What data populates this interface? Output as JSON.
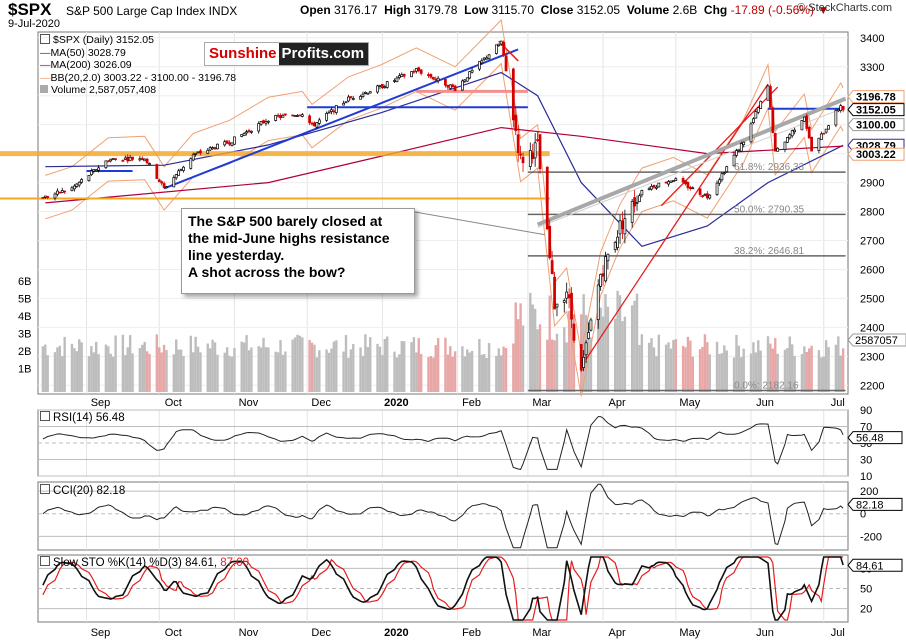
{
  "header": {
    "symbol": "$SPX",
    "name": "S&P 500 Large Cap Index",
    "exchange": "INDX",
    "date": "9-Jul-2020",
    "open_label": "Open",
    "open": "3176.17",
    "high_label": "High",
    "high": "3179.78",
    "low_label": "Low",
    "low": "3115.70",
    "close_label": "Close",
    "close": "3152.05",
    "volume_label": "Volume",
    "volume": "2.6B",
    "chg_label": "Chg",
    "chg": "-17.89 (-0.56%)",
    "chg_arrow": "▼",
    "brand": "© StockCharts.com"
  },
  "legend": {
    "price": "$SPX (Daily) 3152.05",
    "ma50": "MA(50) 3028.79",
    "ma200": "MA(200) 3026.09",
    "bb": "BB(20,2.0) 3003.22 - 3100.00 - 3196.78",
    "volume": "Volume 2,587,057,408"
  },
  "logo": {
    "part1": "Sunshine",
    "part2": "Profits.com"
  },
  "annotation": {
    "lines": [
      "The S&P 500 barely closed at",
      "the mid-June highs resistance",
      "line yesterday.",
      "A shot across the bow?"
    ]
  },
  "price_badges": {
    "bb_upper": "3196.78",
    "close": "3152.05",
    "bb_mid": "3100.00",
    "ma50": "3028.79",
    "bb_lower": "3003.22",
    "volume": "2587057"
  },
  "fib_labels": [
    "61.8%: 2936.33",
    "50.0%: 2790.35",
    "38.2%: 2646.81",
    "0.0%: 2182.16"
  ],
  "indicators": {
    "rsi": {
      "title": "RSI(14) 56.48",
      "value": "56.48",
      "ticks": [
        "90",
        "70",
        "50",
        "30",
        "10"
      ]
    },
    "cci": {
      "title": "CCI(20) 82.18",
      "value": "82.18",
      "ticks": [
        "200",
        "0",
        "-200"
      ]
    },
    "sto": {
      "title_main": "Slow STO %K(14) %D(3) 84.61, ",
      "title_red": "87.00",
      "value": "84.61",
      "ticks": [
        "80",
        "50",
        "20"
      ]
    }
  },
  "colors": {
    "price_up": "#000000",
    "price_down": "#d40000",
    "ma50": "#2b2b9a",
    "ma200": "#b0003a",
    "bb": "#f0a070",
    "volume_up": "#bdbdbd",
    "volume_down": "#e8a7a7",
    "support_orange": "#f5a623",
    "resistance_blue": "#1f3bd6",
    "trend_red": "#e81c1c",
    "trend_gray": "#a8a8a8",
    "osc_green": "#4f8a4f",
    "osc_red": "#8a4a4a",
    "sto_d": "#e81c1c"
  },
  "chart_data": [
    {
      "type": "candlestick",
      "title": "$SPX S&P 500 Large Cap Index",
      "x_ticks": [
        "Sep",
        "Oct",
        "Nov",
        "Dec",
        "2020",
        "Feb",
        "Mar",
        "Apr",
        "May",
        "Jun",
        "Jul"
      ],
      "y_ticks": [
        3400,
        3300,
        3200,
        3100,
        3000,
        2900,
        2800,
        2700,
        2600,
        2500,
        2400,
        2300,
        2200
      ],
      "volume_ticks": [
        "6B",
        "5B",
        "4B",
        "3B",
        "2B",
        "1B"
      ],
      "ylim": [
        2170,
        3420
      ],
      "close_points": [
        [
          "2019-08-15",
          2850
        ],
        [
          "2019-08-26",
          2880
        ],
        [
          "2019-09-10",
          2980
        ],
        [
          "2019-09-25",
          2985
        ],
        [
          "2019-10-03",
          2880
        ],
        [
          "2019-10-15",
          2995
        ],
        [
          "2019-10-30",
          3040
        ],
        [
          "2019-11-15",
          3120
        ],
        [
          "2019-11-29",
          3140
        ],
        [
          "2019-12-03",
          3095
        ],
        [
          "2019-12-18",
          3190
        ],
        [
          "2019-12-31",
          3230
        ],
        [
          "2020-01-15",
          3290
        ],
        [
          "2020-01-31",
          3225
        ],
        [
          "2020-02-19",
          3386
        ],
        [
          "2020-02-27",
          2978
        ],
        [
          "2020-03-05",
          3025
        ],
        [
          "2020-03-12",
          2480
        ],
        [
          "2020-03-17",
          2530
        ],
        [
          "2020-03-23",
          2237
        ],
        [
          "2020-03-31",
          2585
        ],
        [
          "2020-04-08",
          2750
        ],
        [
          "2020-04-17",
          2875
        ],
        [
          "2020-04-30",
          2912
        ],
        [
          "2020-05-14",
          2852
        ],
        [
          "2020-05-29",
          3044
        ],
        [
          "2020-06-08",
          3232
        ],
        [
          "2020-06-11",
          3002
        ],
        [
          "2020-06-23",
          3131
        ],
        [
          "2020-06-26",
          3009
        ],
        [
          "2020-07-08",
          3169
        ],
        [
          "2020-07-09",
          3152
        ]
      ],
      "ma50_points": [
        [
          "2019-08-15",
          2955
        ],
        [
          "2019-10-03",
          2960
        ],
        [
          "2019-11-15",
          3030
        ],
        [
          "2019-12-31",
          3140
        ],
        [
          "2020-02-19",
          3280
        ],
        [
          "2020-03-05",
          3200
        ],
        [
          "2020-03-23",
          2900
        ],
        [
          "2020-04-17",
          2680
        ],
        [
          "2020-05-14",
          2750
        ],
        [
          "2020-06-08",
          2900
        ],
        [
          "2020-07-09",
          3028.79
        ]
      ],
      "ma200_points": [
        [
          "2019-08-15",
          2830
        ],
        [
          "2019-11-15",
          2900
        ],
        [
          "2019-12-31",
          2990
        ],
        [
          "2020-02-19",
          3090
        ],
        [
          "2020-03-23",
          3060
        ],
        [
          "2020-05-14",
          3000
        ],
        [
          "2020-07-09",
          3026.09
        ]
      ],
      "levels": [
        {
          "name": "orange support",
          "y": 3000
        },
        {
          "name": "orange support 2",
          "y": 2845
        },
        {
          "name": "blue resistance",
          "y": 3160
        },
        {
          "name": "mid-June highs resistance",
          "y": 3155
        }
      ],
      "fibonacci": [
        {
          "label": "61.8%: 2936.33",
          "y": 2936.33
        },
        {
          "label": "50.0%: 2790.35",
          "y": 2790.35
        },
        {
          "label": "38.2%: 2646.81",
          "y": 2646.81
        },
        {
          "label": "0.0%: 2182.16",
          "y": 2182.16
        }
      ],
      "legend": "top-left"
    },
    {
      "type": "line",
      "title": "RSI(14) 56.48",
      "y_ticks": [
        90,
        70,
        50,
        30,
        10
      ],
      "ylim": [
        10,
        90
      ],
      "last": 56.48
    },
    {
      "type": "line",
      "title": "CCI(20) 82.18",
      "y_ticks": [
        200,
        0,
        -200
      ],
      "ylim": [
        -320,
        280
      ],
      "last": 82.18
    },
    {
      "type": "line",
      "title": "Slow STO %K(14) %D(3) 84.61, 87.00",
      "y_ticks": [
        80,
        50,
        20
      ],
      "ylim": [
        0,
        100
      ],
      "series": [
        {
          "name": "%K(14)",
          "last": 84.61
        },
        {
          "name": "%D(3)",
          "last": 87.0
        }
      ]
    }
  ]
}
